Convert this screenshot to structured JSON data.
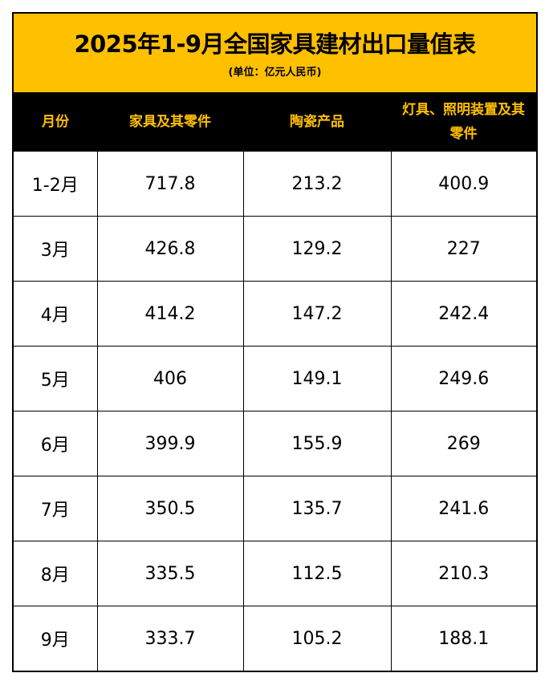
{
  "title": "2025年1-9月全国家具建材出口量值表",
  "subtitle": "(单位：亿元人民币)",
  "colors": {
    "title_bg": "#FFC000",
    "header_bg": "#000000",
    "header_text": "#FFC000"
  },
  "headers": [
    "月份",
    "家具及其零件",
    "陶瓷产品",
    "灯具、照明装置及其零件"
  ],
  "rows": [
    [
      "1-2月",
      "717.8",
      "213.2",
      "400.9"
    ],
    [
      "3月",
      "426.8",
      "129.2",
      "227"
    ],
    [
      "4月",
      "414.2",
      "147.2",
      "242.4"
    ],
    [
      "5月",
      "406",
      "149.1",
      "249.6"
    ],
    [
      "6月",
      "399.9",
      "155.9",
      "269"
    ],
    [
      "7月",
      "350.5",
      "135.7",
      "241.6"
    ],
    [
      "8月",
      "335.5",
      "112.5",
      "210.3"
    ],
    [
      "9月",
      "333.7",
      "105.2",
      "188.1"
    ]
  ]
}
